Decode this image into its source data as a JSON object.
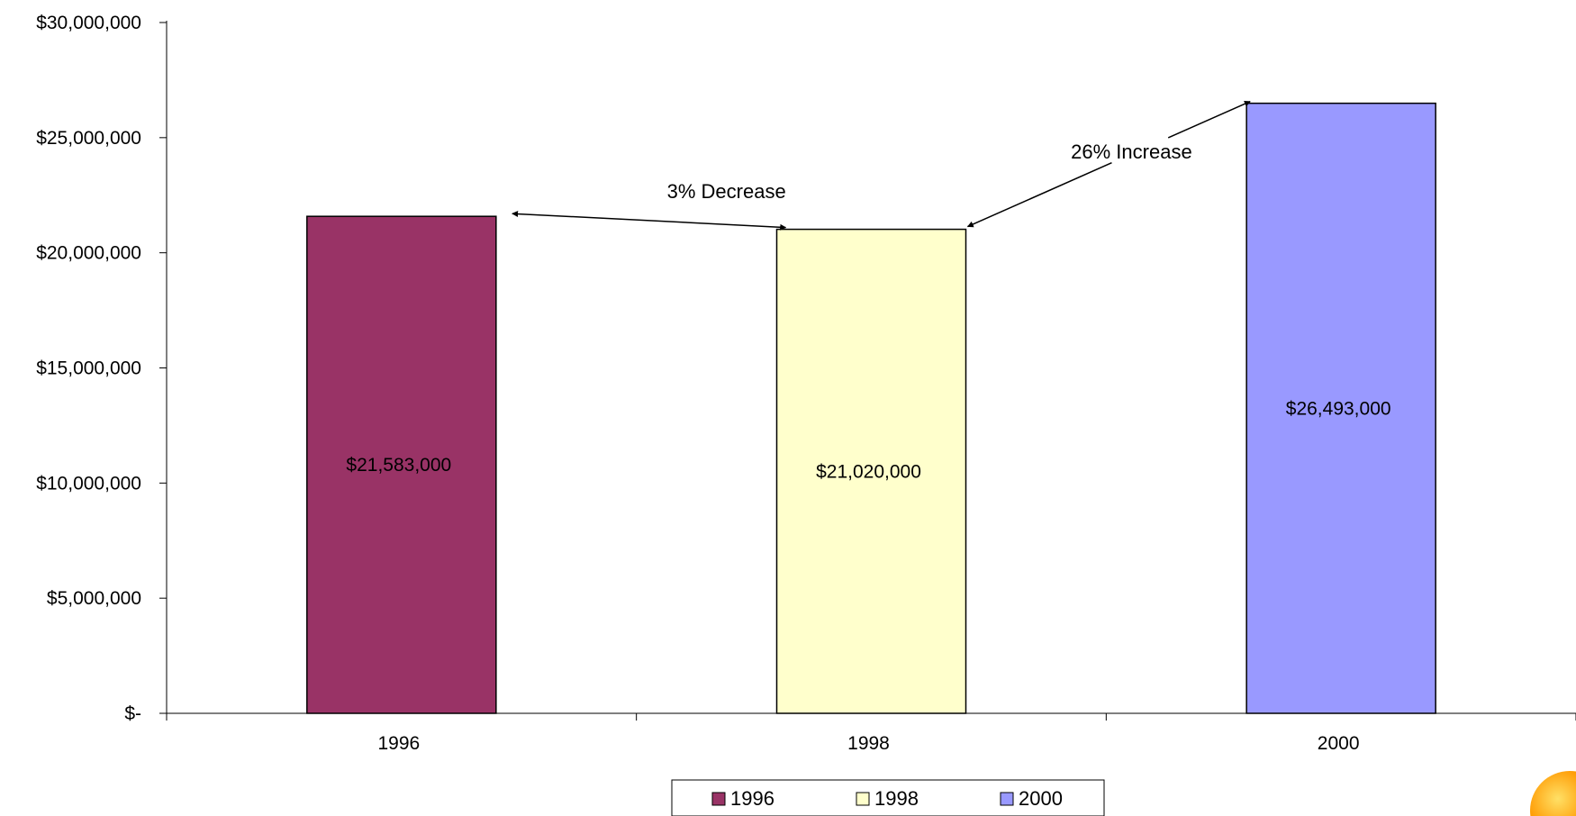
{
  "chart_data": {
    "type": "bar",
    "title": "",
    "xlabel": "",
    "ylabel": "",
    "categories": [
      "1996",
      "1998",
      "2000"
    ],
    "values": [
      21583000,
      21020000,
      26493000
    ],
    "value_labels": [
      "$21,583,000",
      "$21,020,000",
      "$26,493,000"
    ],
    "colors": [
      "#993366",
      "#FFFFCC",
      "#9999FF"
    ],
    "ylim": [
      0,
      30000000
    ],
    "yticks": [
      0,
      5000000,
      10000000,
      15000000,
      20000000,
      25000000,
      30000000
    ],
    "ytick_labels": [
      "$-",
      "$5,000,000",
      "$10,000,000",
      "$15,000,000",
      "$20,000,000",
      "$25,000,000",
      "$30,000,000"
    ],
    "grid": false,
    "legend": {
      "placement": "bottom-center",
      "entries": [
        "1996",
        "1998",
        "2000"
      ]
    },
    "annotations": [
      {
        "text": "3% Decrease",
        "from_category": "1996",
        "to_category": "1998"
      },
      {
        "text": "26% Increase",
        "from_category": "1998",
        "to_category": "2000"
      }
    ]
  }
}
